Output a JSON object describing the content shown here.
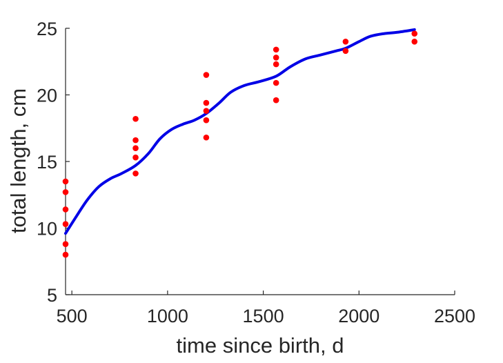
{
  "chart_data": {
    "type": "scatter",
    "title": "",
    "xlabel": "time since birth, d",
    "ylabel": "total length, cm",
    "xlim": [
      467,
      2500
    ],
    "ylim": [
      5,
      25
    ],
    "xticks": [
      500,
      1000,
      1500,
      2000,
      2500
    ],
    "yticks": [
      5,
      10,
      15,
      20,
      25
    ],
    "x_tick_labels": [
      "500",
      "1000",
      "1500",
      "2000",
      "2500"
    ],
    "y_tick_labels": [
      "5",
      "10",
      "15",
      "20",
      "25"
    ],
    "grid": false,
    "legend": "none",
    "series": [
      {
        "type": "scatter",
        "color": "#ff0000",
        "points": [
          {
            "x": 467,
            "y": 13.5
          },
          {
            "x": 467,
            "y": 12.7
          },
          {
            "x": 467,
            "y": 11.4
          },
          {
            "x": 467,
            "y": 10.3
          },
          {
            "x": 467,
            "y": 8.8
          },
          {
            "x": 467,
            "y": 8.0
          },
          {
            "x": 833,
            "y": 18.2
          },
          {
            "x": 833,
            "y": 16.6
          },
          {
            "x": 833,
            "y": 16.0
          },
          {
            "x": 833,
            "y": 15.3
          },
          {
            "x": 833,
            "y": 14.1
          },
          {
            "x": 1202,
            "y": 21.5
          },
          {
            "x": 1202,
            "y": 19.4
          },
          {
            "x": 1202,
            "y": 18.8
          },
          {
            "x": 1202,
            "y": 18.1
          },
          {
            "x": 1202,
            "y": 16.8
          },
          {
            "x": 1567,
            "y": 23.4
          },
          {
            "x": 1567,
            "y": 22.8
          },
          {
            "x": 1567,
            "y": 22.3
          },
          {
            "x": 1567,
            "y": 20.9
          },
          {
            "x": 1567,
            "y": 19.6
          },
          {
            "x": 1930,
            "y": 24.0
          },
          {
            "x": 1930,
            "y": 23.3
          },
          {
            "x": 2290,
            "y": 24.6
          },
          {
            "x": 2290,
            "y": 24.0
          }
        ]
      },
      {
        "type": "line",
        "color": "#0000e6",
        "points": [
          {
            "x": 467,
            "y": 9.6
          },
          {
            "x": 520,
            "y": 10.8
          },
          {
            "x": 580,
            "y": 12.1
          },
          {
            "x": 640,
            "y": 13.1
          },
          {
            "x": 700,
            "y": 13.7
          },
          {
            "x": 760,
            "y": 14.1
          },
          {
            "x": 833,
            "y": 14.7
          },
          {
            "x": 900,
            "y": 15.6
          },
          {
            "x": 960,
            "y": 16.7
          },
          {
            "x": 1020,
            "y": 17.4
          },
          {
            "x": 1080,
            "y": 17.8
          },
          {
            "x": 1140,
            "y": 18.1
          },
          {
            "x": 1202,
            "y": 18.6
          },
          {
            "x": 1270,
            "y": 19.4
          },
          {
            "x": 1330,
            "y": 20.2
          },
          {
            "x": 1400,
            "y": 20.7
          },
          {
            "x": 1480,
            "y": 21.0
          },
          {
            "x": 1567,
            "y": 21.4
          },
          {
            "x": 1640,
            "y": 22.1
          },
          {
            "x": 1720,
            "y": 22.7
          },
          {
            "x": 1800,
            "y": 23.0
          },
          {
            "x": 1880,
            "y": 23.3
          },
          {
            "x": 1930,
            "y": 23.5
          },
          {
            "x": 2000,
            "y": 24.0
          },
          {
            "x": 2060,
            "y": 24.4
          },
          {
            "x": 2130,
            "y": 24.6
          },
          {
            "x": 2200,
            "y": 24.7
          },
          {
            "x": 2290,
            "y": 24.9
          }
        ]
      }
    ]
  }
}
